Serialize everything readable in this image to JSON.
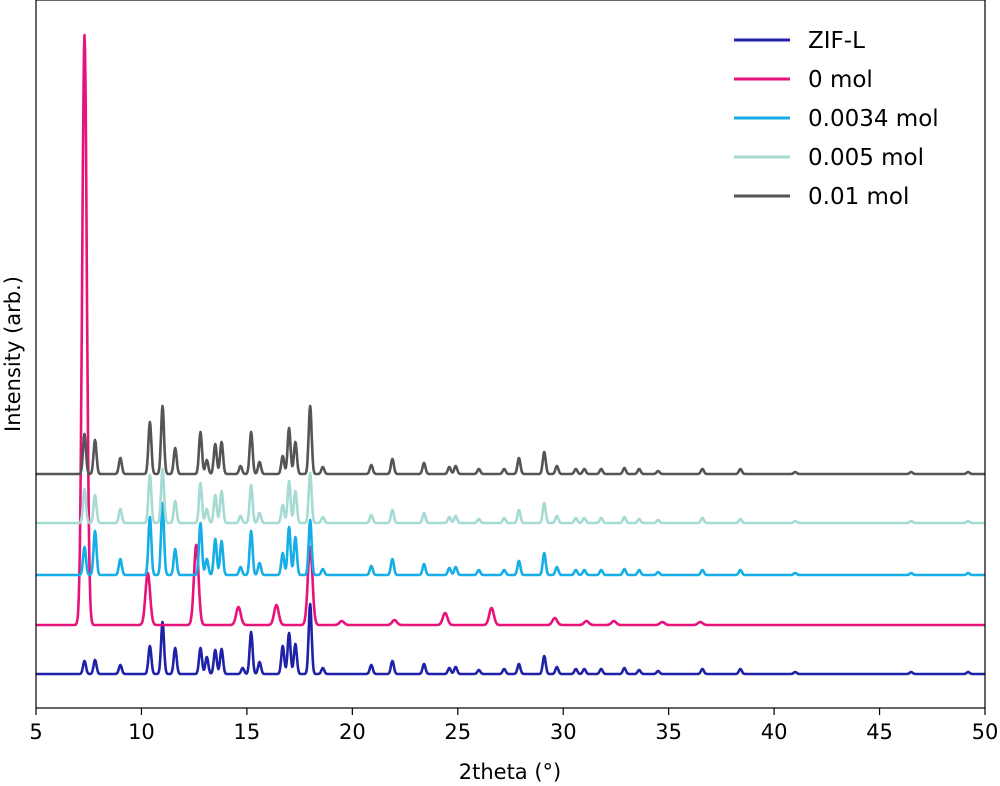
{
  "chart_data": {
    "type": "line",
    "xlabel": "2theta  (°)",
    "ylabel": "Intensity (arb.)",
    "xlim": [
      5,
      50
    ],
    "x_ticks": [
      "5",
      "10",
      "15",
      "20",
      "25",
      "30",
      "35",
      "40",
      "45",
      "50"
    ],
    "grid": false,
    "legend_position": "top-right",
    "series": [
      {
        "name": "ZIF-L",
        "color": "#1f22a8",
        "baseline": 0,
        "peaks": [
          [
            7.3,
            13
          ],
          [
            7.8,
            14
          ],
          [
            9.0,
            9
          ],
          [
            10.4,
            28
          ],
          [
            11.0,
            52
          ],
          [
            11.6,
            26
          ],
          [
            12.8,
            26
          ],
          [
            13.1,
            17
          ],
          [
            13.5,
            24
          ],
          [
            13.8,
            25
          ],
          [
            14.8,
            6
          ],
          [
            15.2,
            42
          ],
          [
            15.6,
            12
          ],
          [
            16.7,
            28
          ],
          [
            17.0,
            41
          ],
          [
            17.3,
            30
          ],
          [
            18.0,
            70
          ],
          [
            18.6,
            6
          ],
          [
            20.9,
            9
          ],
          [
            21.9,
            13
          ],
          [
            23.4,
            10
          ],
          [
            24.6,
            6
          ],
          [
            24.9,
            7
          ],
          [
            26.0,
            4
          ],
          [
            27.2,
            5
          ],
          [
            27.9,
            10
          ],
          [
            29.1,
            18
          ],
          [
            29.7,
            7
          ],
          [
            30.6,
            5
          ],
          [
            31.0,
            5
          ],
          [
            31.8,
            5
          ],
          [
            32.9,
            6
          ],
          [
            33.6,
            4
          ],
          [
            34.5,
            3
          ],
          [
            36.6,
            5
          ],
          [
            38.4,
            5
          ],
          [
            41.0,
            2
          ],
          [
            46.5,
            2
          ],
          [
            49.2,
            2
          ]
        ]
      },
      {
        "name": "0 mol",
        "color": "#e8127c",
        "baseline": 49,
        "peaks": [
          [
            7.3,
            590
          ],
          [
            10.3,
            52
          ],
          [
            12.6,
            80
          ],
          [
            14.6,
            18
          ],
          [
            16.4,
            20
          ],
          [
            18.0,
            78
          ],
          [
            19.5,
            4
          ],
          [
            22.0,
            5
          ],
          [
            24.4,
            12
          ],
          [
            26.6,
            17
          ],
          [
            29.6,
            7
          ],
          [
            31.1,
            4
          ],
          [
            32.4,
            4
          ],
          [
            34.7,
            3
          ],
          [
            36.5,
            3
          ]
        ]
      },
      {
        "name": "0.0034 mol",
        "color": "#16aee6",
        "baseline": 99,
        "peaks": [
          [
            7.3,
            28
          ],
          [
            7.8,
            44
          ],
          [
            9.0,
            16
          ],
          [
            10.4,
            58
          ],
          [
            11.0,
            72
          ],
          [
            11.6,
            26
          ],
          [
            12.8,
            52
          ],
          [
            13.1,
            16
          ],
          [
            13.5,
            36
          ],
          [
            13.8,
            34
          ],
          [
            14.7,
            8
          ],
          [
            15.2,
            44
          ],
          [
            15.6,
            12
          ],
          [
            16.7,
            22
          ],
          [
            17.0,
            48
          ],
          [
            17.3,
            38
          ],
          [
            18.0,
            55
          ],
          [
            18.6,
            6
          ],
          [
            20.9,
            9
          ],
          [
            21.9,
            16
          ],
          [
            23.4,
            11
          ],
          [
            24.6,
            7
          ],
          [
            24.9,
            8
          ],
          [
            26.0,
            5
          ],
          [
            27.2,
            5
          ],
          [
            27.9,
            14
          ],
          [
            29.1,
            22
          ],
          [
            29.7,
            8
          ],
          [
            30.6,
            5
          ],
          [
            31.0,
            5
          ],
          [
            31.8,
            5
          ],
          [
            32.9,
            6
          ],
          [
            33.6,
            5
          ],
          [
            34.5,
            3
          ],
          [
            36.6,
            5
          ],
          [
            38.4,
            5
          ],
          [
            41.0,
            2
          ],
          [
            46.5,
            2
          ],
          [
            49.2,
            2
          ]
        ]
      },
      {
        "name": "0.005 mol",
        "color": "#a5dbd3",
        "baseline": 151,
        "peaks": [
          [
            7.3,
            34
          ],
          [
            7.8,
            28
          ],
          [
            9.0,
            14
          ],
          [
            10.4,
            48
          ],
          [
            11.0,
            54
          ],
          [
            11.6,
            22
          ],
          [
            12.8,
            40
          ],
          [
            13.1,
            14
          ],
          [
            13.5,
            28
          ],
          [
            13.8,
            32
          ],
          [
            14.7,
            7
          ],
          [
            15.2,
            38
          ],
          [
            15.6,
            10
          ],
          [
            16.7,
            18
          ],
          [
            17.0,
            42
          ],
          [
            17.3,
            32
          ],
          [
            18.0,
            50
          ],
          [
            18.6,
            6
          ],
          [
            20.9,
            8
          ],
          [
            21.9,
            13
          ],
          [
            23.4,
            10
          ],
          [
            24.6,
            6
          ],
          [
            24.9,
            7
          ],
          [
            26.0,
            4
          ],
          [
            27.2,
            5
          ],
          [
            27.9,
            13
          ],
          [
            29.1,
            20
          ],
          [
            29.7,
            7
          ],
          [
            30.6,
            5
          ],
          [
            31.0,
            5
          ],
          [
            31.8,
            5
          ],
          [
            32.9,
            6
          ],
          [
            33.6,
            4
          ],
          [
            34.5,
            3
          ],
          [
            36.6,
            5
          ],
          [
            38.4,
            4
          ],
          [
            41.0,
            2
          ],
          [
            46.5,
            2
          ],
          [
            49.2,
            2
          ]
        ]
      },
      {
        "name": "0.01 mol",
        "color": "#555555",
        "baseline": 200,
        "peaks": [
          [
            7.3,
            40
          ],
          [
            7.8,
            34
          ],
          [
            9.0,
            16
          ],
          [
            10.4,
            52
          ],
          [
            11.0,
            68
          ],
          [
            11.6,
            26
          ],
          [
            12.8,
            42
          ],
          [
            13.1,
            14
          ],
          [
            13.5,
            30
          ],
          [
            13.8,
            32
          ],
          [
            14.7,
            8
          ],
          [
            15.2,
            42
          ],
          [
            15.6,
            12
          ],
          [
            16.7,
            18
          ],
          [
            17.0,
            46
          ],
          [
            17.3,
            32
          ],
          [
            18.0,
            68
          ],
          [
            18.6,
            7
          ],
          [
            20.9,
            9
          ],
          [
            21.9,
            15
          ],
          [
            23.4,
            11
          ],
          [
            24.6,
            7
          ],
          [
            24.9,
            8
          ],
          [
            26.0,
            5
          ],
          [
            27.2,
            5
          ],
          [
            27.9,
            16
          ],
          [
            29.1,
            22
          ],
          [
            29.7,
            8
          ],
          [
            30.6,
            5
          ],
          [
            31.0,
            5
          ],
          [
            31.8,
            5
          ],
          [
            32.9,
            6
          ],
          [
            33.6,
            5
          ],
          [
            34.5,
            3
          ],
          [
            36.6,
            5
          ],
          [
            38.4,
            5
          ],
          [
            41.0,
            2
          ],
          [
            46.5,
            2
          ],
          [
            49.2,
            2
          ]
        ]
      }
    ]
  }
}
